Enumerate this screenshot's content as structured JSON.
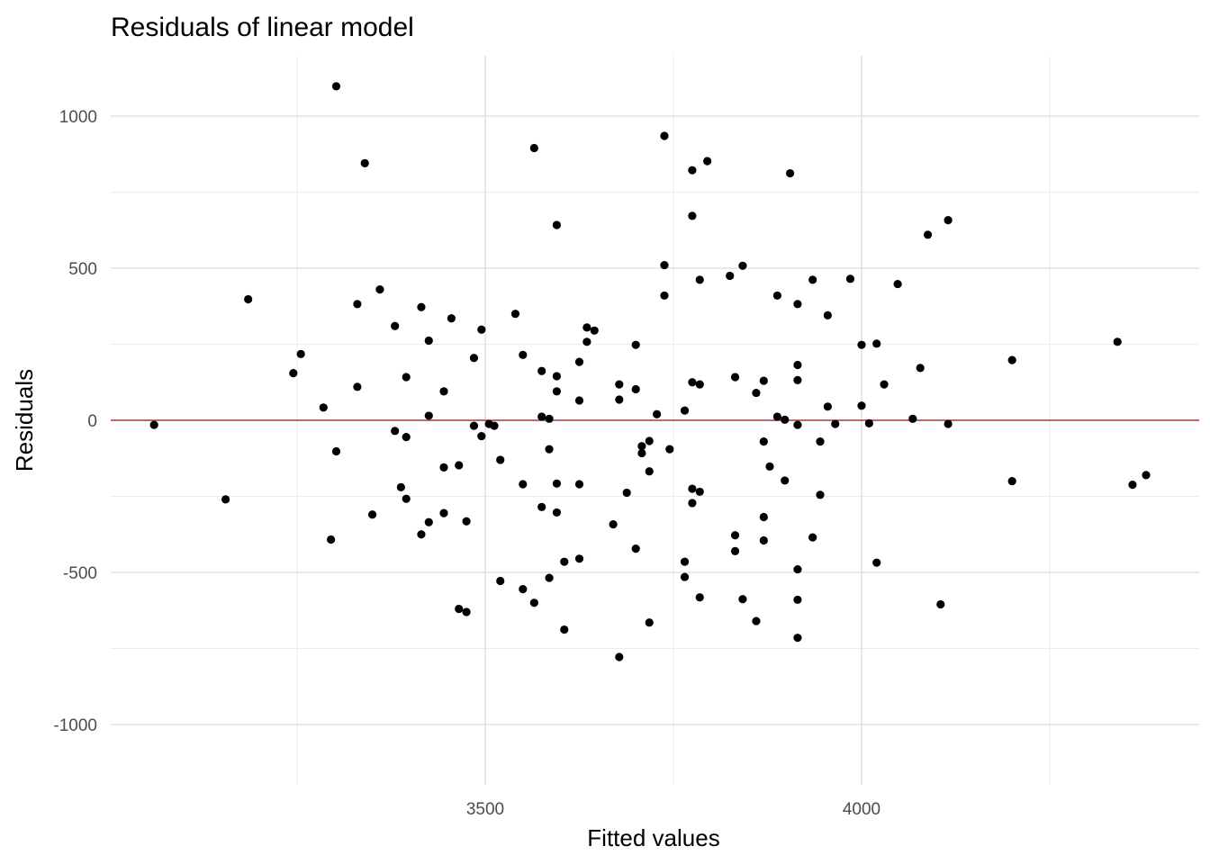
{
  "chart_data": {
    "type": "scatter",
    "title": "Residuals of linear model",
    "xlabel": "Fitted values",
    "ylabel": "Residuals",
    "xlim": [
      3050,
      4450
    ],
    "ylim": [
      -1200,
      1200
    ],
    "x_ticks": [
      3500,
      4000
    ],
    "x_ticks_labeled": [
      "3500",
      "4000"
    ],
    "x_minor_ticks": [
      3250,
      3750,
      4250
    ],
    "y_ticks": [
      -1000,
      -500,
      0,
      500,
      1000
    ],
    "y_ticks_labeled": [
      "-1000",
      "-500",
      "0",
      "500",
      "1000"
    ],
    "y_minor_ticks": [
      -750,
      -250,
      250,
      750
    ],
    "grid": true,
    "reference_line": {
      "y": 0,
      "color": "#b03a48"
    },
    "point_color": "#000000",
    "points": [
      {
        "x": 3060,
        "y": -15
      },
      {
        "x": 3155,
        "y": -260
      },
      {
        "x": 3185,
        "y": 398
      },
      {
        "x": 3245,
        "y": 155
      },
      {
        "x": 3255,
        "y": 218
      },
      {
        "x": 3285,
        "y": 42
      },
      {
        "x": 3295,
        "y": -392
      },
      {
        "x": 3302,
        "y": -102
      },
      {
        "x": 3302,
        "y": 1098
      },
      {
        "x": 3330,
        "y": 382
      },
      {
        "x": 3330,
        "y": 110
      },
      {
        "x": 3340,
        "y": 845
      },
      {
        "x": 3350,
        "y": -310
      },
      {
        "x": 3360,
        "y": 430
      },
      {
        "x": 3380,
        "y": 310
      },
      {
        "x": 3380,
        "y": -35
      },
      {
        "x": 3388,
        "y": -220
      },
      {
        "x": 3395,
        "y": -258
      },
      {
        "x": 3395,
        "y": 142
      },
      {
        "x": 3395,
        "y": -55
      },
      {
        "x": 3415,
        "y": -375
      },
      {
        "x": 3415,
        "y": 372
      },
      {
        "x": 3425,
        "y": -335
      },
      {
        "x": 3425,
        "y": 15
      },
      {
        "x": 3425,
        "y": 262
      },
      {
        "x": 3445,
        "y": 95
      },
      {
        "x": 3445,
        "y": -155
      },
      {
        "x": 3445,
        "y": -305
      },
      {
        "x": 3455,
        "y": 335
      },
      {
        "x": 3465,
        "y": -620
      },
      {
        "x": 3465,
        "y": -148
      },
      {
        "x": 3475,
        "y": -630
      },
      {
        "x": 3475,
        "y": -332
      },
      {
        "x": 3485,
        "y": -18
      },
      {
        "x": 3485,
        "y": 205
      },
      {
        "x": 3495,
        "y": -52
      },
      {
        "x": 3495,
        "y": 298
      },
      {
        "x": 3505,
        "y": -12
      },
      {
        "x": 3512,
        "y": -18
      },
      {
        "x": 3520,
        "y": -130
      },
      {
        "x": 3520,
        "y": -528
      },
      {
        "x": 3540,
        "y": 350
      },
      {
        "x": 3550,
        "y": 215
      },
      {
        "x": 3550,
        "y": -210
      },
      {
        "x": 3550,
        "y": -555
      },
      {
        "x": 3565,
        "y": 895
      },
      {
        "x": 3565,
        "y": -600
      },
      {
        "x": 3575,
        "y": 162
      },
      {
        "x": 3575,
        "y": 12
      },
      {
        "x": 3575,
        "y": -285
      },
      {
        "x": 3585,
        "y": 5
      },
      {
        "x": 3585,
        "y": -95
      },
      {
        "x": 3585,
        "y": -518
      },
      {
        "x": 3595,
        "y": 642
      },
      {
        "x": 3595,
        "y": 145
      },
      {
        "x": 3595,
        "y": 95
      },
      {
        "x": 3595,
        "y": -208
      },
      {
        "x": 3595,
        "y": -303
      },
      {
        "x": 3605,
        "y": -465
      },
      {
        "x": 3605,
        "y": -688
      },
      {
        "x": 3625,
        "y": 192
      },
      {
        "x": 3625,
        "y": 65
      },
      {
        "x": 3625,
        "y": -210
      },
      {
        "x": 3625,
        "y": -455
      },
      {
        "x": 3635,
        "y": 305
      },
      {
        "x": 3635,
        "y": 258
      },
      {
        "x": 3645,
        "y": 295
      },
      {
        "x": 3670,
        "y": -342
      },
      {
        "x": 3678,
        "y": 118
      },
      {
        "x": 3678,
        "y": 68
      },
      {
        "x": 3678,
        "y": -778
      },
      {
        "x": 3688,
        "y": -238
      },
      {
        "x": 3700,
        "y": 248
      },
      {
        "x": 3700,
        "y": 102
      },
      {
        "x": 3700,
        "y": -422
      },
      {
        "x": 3708,
        "y": -85
      },
      {
        "x": 3708,
        "y": -108
      },
      {
        "x": 3718,
        "y": -68
      },
      {
        "x": 3718,
        "y": -168
      },
      {
        "x": 3718,
        "y": -665
      },
      {
        "x": 3728,
        "y": 20
      },
      {
        "x": 3738,
        "y": 935
      },
      {
        "x": 3738,
        "y": 510
      },
      {
        "x": 3738,
        "y": 410
      },
      {
        "x": 3745,
        "y": -95
      },
      {
        "x": 3765,
        "y": 32
      },
      {
        "x": 3765,
        "y": -465
      },
      {
        "x": 3765,
        "y": -515
      },
      {
        "x": 3775,
        "y": 822
      },
      {
        "x": 3775,
        "y": 672
      },
      {
        "x": 3775,
        "y": 125
      },
      {
        "x": 3775,
        "y": -225
      },
      {
        "x": 3775,
        "y": -272
      },
      {
        "x": 3785,
        "y": 462
      },
      {
        "x": 3785,
        "y": 118
      },
      {
        "x": 3785,
        "y": -235
      },
      {
        "x": 3785,
        "y": -582
      },
      {
        "x": 3795,
        "y": 852
      },
      {
        "x": 3825,
        "y": 475
      },
      {
        "x": 3832,
        "y": 142
      },
      {
        "x": 3832,
        "y": -378
      },
      {
        "x": 3832,
        "y": -430
      },
      {
        "x": 3842,
        "y": 508
      },
      {
        "x": 3842,
        "y": -588
      },
      {
        "x": 3860,
        "y": 90
      },
      {
        "x": 3860,
        "y": -660
      },
      {
        "x": 3870,
        "y": 130
      },
      {
        "x": 3870,
        "y": -70
      },
      {
        "x": 3870,
        "y": -318
      },
      {
        "x": 3870,
        "y": -395
      },
      {
        "x": 3878,
        "y": -152
      },
      {
        "x": 3888,
        "y": 410
      },
      {
        "x": 3888,
        "y": 12
      },
      {
        "x": 3898,
        "y": 2
      },
      {
        "x": 3898,
        "y": -198
      },
      {
        "x": 3905,
        "y": 812
      },
      {
        "x": 3915,
        "y": 382
      },
      {
        "x": 3915,
        "y": 182
      },
      {
        "x": 3915,
        "y": 132
      },
      {
        "x": 3915,
        "y": -15
      },
      {
        "x": 3915,
        "y": -490
      },
      {
        "x": 3915,
        "y": -590
      },
      {
        "x": 3915,
        "y": -715
      },
      {
        "x": 3935,
        "y": 462
      },
      {
        "x": 3935,
        "y": -385
      },
      {
        "x": 3945,
        "y": -70
      },
      {
        "x": 3945,
        "y": -245
      },
      {
        "x": 3955,
        "y": 345
      },
      {
        "x": 3955,
        "y": 45
      },
      {
        "x": 3965,
        "y": -12
      },
      {
        "x": 3985,
        "y": 465
      },
      {
        "x": 4000,
        "y": 248
      },
      {
        "x": 4000,
        "y": 48
      },
      {
        "x": 4010,
        "y": -10
      },
      {
        "x": 4020,
        "y": 252
      },
      {
        "x": 4020,
        "y": -468
      },
      {
        "x": 4030,
        "y": 118
      },
      {
        "x": 4048,
        "y": 448
      },
      {
        "x": 4068,
        "y": 5
      },
      {
        "x": 4078,
        "y": 172
      },
      {
        "x": 4088,
        "y": 610
      },
      {
        "x": 4105,
        "y": -605
      },
      {
        "x": 4115,
        "y": 658
      },
      {
        "x": 4115,
        "y": -12
      },
      {
        "x": 4200,
        "y": 198
      },
      {
        "x": 4200,
        "y": -200
      },
      {
        "x": 4340,
        "y": 258
      },
      {
        "x": 4360,
        "y": -212
      },
      {
        "x": 4378,
        "y": -180
      }
    ]
  }
}
